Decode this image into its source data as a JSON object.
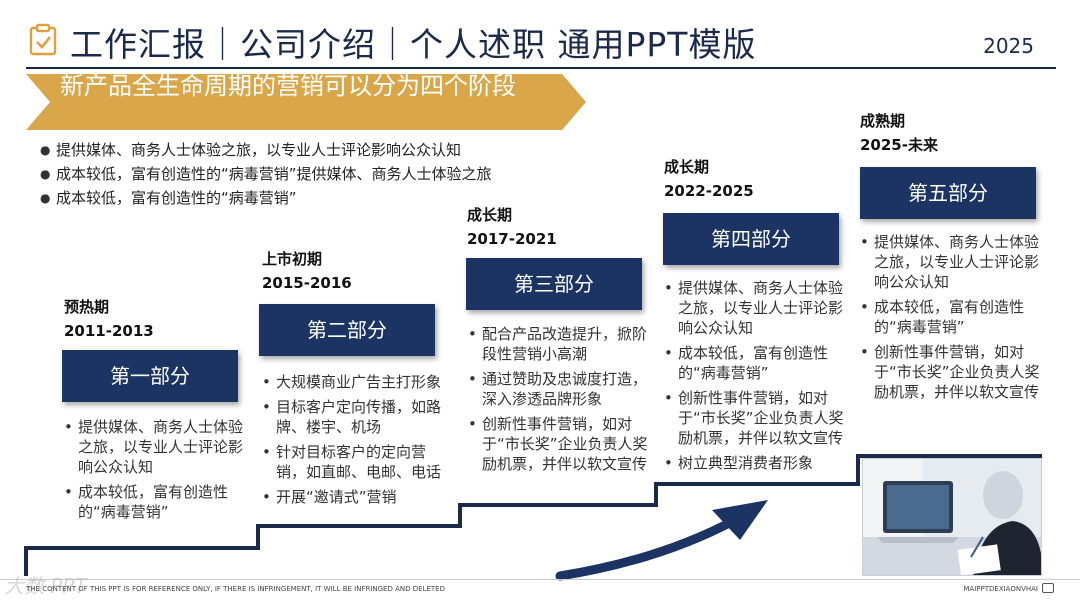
{
  "header": {
    "title": "工作汇报｜公司介绍｜个人述职 通用PPT模版",
    "year": "2025",
    "icon": "clipboard-check-icon"
  },
  "banner": {
    "text": "新产品全生命周期的营销可以分为四个阶段"
  },
  "intro": [
    "提供媒体、商务人士体验之旅，以专业人士评论影响公众认知",
    "成本较低，富有创造性的“病毒营销”提供媒体、商务人士体验之旅",
    "成本较低，富有创造性的“病毒营销”"
  ],
  "stages": [
    {
      "name": "预热期",
      "years": "2011-2013",
      "part": "第一部分",
      "bullets": [
        "提供媒体、商务人士体验之旅，以专业人士评论影响公众认知",
        "成本较低，富有创造性的“病毒营销”"
      ]
    },
    {
      "name": "上市初期",
      "years": "2015-2016",
      "part": "第二部分",
      "bullets": [
        "大规模商业广告主打形象",
        "目标客户定向传播，如路牌、楼宇、机场",
        "针对目标客户的定向营销，如直邮、电邮、电话",
        "开展“邀请式”营销"
      ]
    },
    {
      "name": "成长期",
      "years": "2017-2021",
      "part": "第三部分",
      "bullets": [
        "配合产品改造提升，掀阶段性营销小高潮",
        "通过赞助及忠诚度打造，深入渗透品牌形象",
        "创新性事件营销，如对于“市长奖”企业负责人奖励机票，并伴以软文宣传"
      ]
    },
    {
      "name": "成长期",
      "years": "2022-2025",
      "part": "第四部分",
      "bullets": [
        "提供媒体、商务人士体验之旅，以专业人士评论影响公众认知",
        "成本较低，富有创造性的“病毒营销”",
        "创新性事件营销，如对于“市长奖”企业负责人奖励机票，并伴以软文宣传",
        "树立典型消费者形象"
      ]
    },
    {
      "name": "成熟期",
      "years": "2025-未来",
      "part": "第五部分",
      "bullets": [
        "提供媒体、商务人士体验之旅，以专业人士评论影响公众认知",
        "成本较低，富有创造性的“病毒营销”",
        "创新性事件营销，如对于“市长奖”企业负责人奖励机票，并伴以软文宣传"
      ]
    }
  ],
  "footer": {
    "disclaimer": "THE CONTENT OF THIS PPT IS FOR REFERENCE ONLY, IF THERE IS INFRINGEMENT, IT WILL BE INFRINGED AND DELETED",
    "brand": "MAIPPTDEXIAONVHAI",
    "watermark": "大数 PPT"
  },
  "colors": {
    "navy": "#1c3463",
    "gold": "#d9a74a",
    "stair_line": "#1b2a4a"
  }
}
